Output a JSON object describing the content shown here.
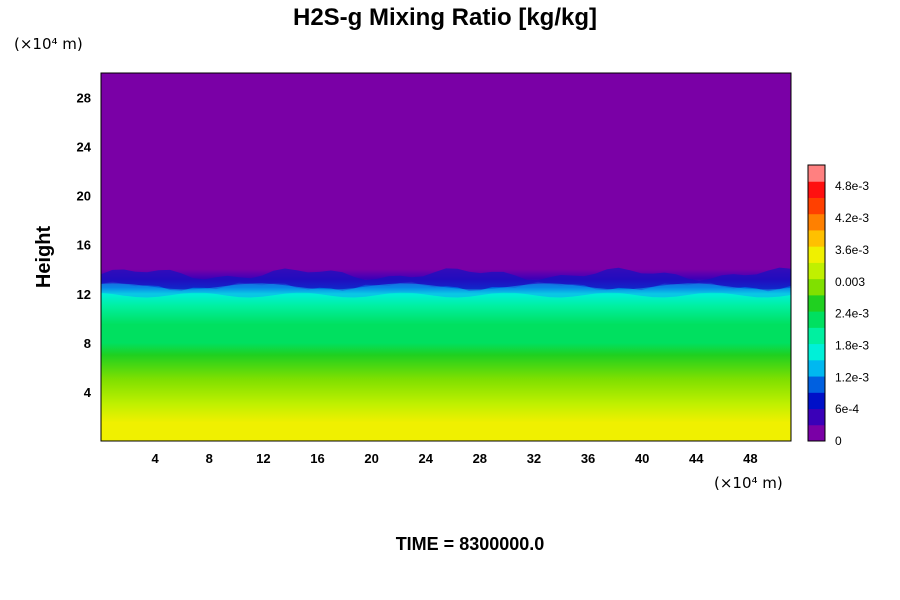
{
  "chart_data": {
    "type": "heatmap",
    "title": "H2S-g Mixing Ratio [kg/kg]",
    "ylabel": "Height",
    "xlabel": "",
    "x_unit": "(×10⁴ m)",
    "y_unit": "(×10⁴ m)",
    "footer": "TIME = 8300000.0",
    "xlim": [
      0,
      51
    ],
    "ylim": [
      0,
      30
    ],
    "x_ticks": [
      "4",
      "8",
      "12",
      "16",
      "20",
      "24",
      "28",
      "32",
      "36",
      "40",
      "44",
      "48"
    ],
    "y_ticks": [
      "4",
      "8",
      "12",
      "16",
      "20",
      "24",
      "28"
    ],
    "colorbar": {
      "min": 0,
      "max": 0.0052,
      "tick_values": [
        0,
        0.0006,
        0.0012,
        0.0018,
        0.0024,
        0.003,
        0.0036,
        0.0042,
        0.0048
      ],
      "tick_labels": [
        "0",
        "6e-4",
        "1.2e-3",
        "1.8e-3",
        "2.4e-3",
        "0.003",
        "3.6e-3",
        "4.2e-3",
        "4.8e-3"
      ],
      "colors": [
        "#7a00a6",
        "#3a00b8",
        "#0010c8",
        "#0060e0",
        "#00b8f0",
        "#00f0d8",
        "#00f0a0",
        "#00e060",
        "#20d020",
        "#80e000",
        "#c0f000",
        "#f0f000",
        "#ffc000",
        "#ff8000",
        "#ff4000",
        "#ff1010",
        "#ff8080"
      ]
    },
    "profile": [
      {
        "height": 0,
        "value": 0.0036
      },
      {
        "height": 1.5,
        "value": 0.0034
      },
      {
        "height": 3,
        "value": 0.0032
      },
      {
        "height": 5,
        "value": 0.0029
      },
      {
        "height": 7,
        "value": 0.0026
      },
      {
        "height": 8,
        "value": 0.0024
      },
      {
        "height": 9.5,
        "value": 0.0022
      },
      {
        "height": 11,
        "value": 0.0019
      },
      {
        "height": 12,
        "value": 0.0016
      },
      {
        "height": 12.5,
        "value": 0.0011
      },
      {
        "height": 13.2,
        "value": 0.0005
      },
      {
        "height": 14,
        "value": 0.0001
      },
      {
        "height": 15,
        "value": 0
      },
      {
        "height": 30,
        "value": 0
      }
    ],
    "grid": false,
    "legend": "colorbar-right"
  }
}
